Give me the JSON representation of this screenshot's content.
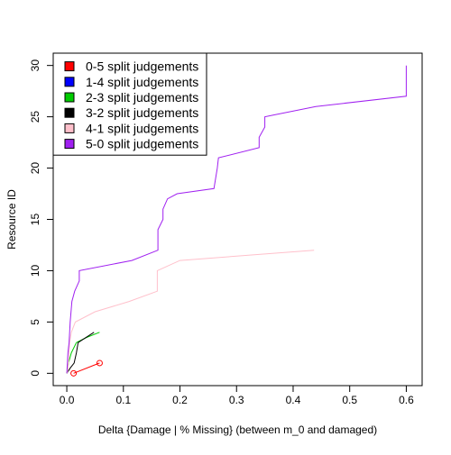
{
  "chart_data": {
    "type": "line",
    "xlabel": "Delta {Damage | % Missing} (between m_0 and damaged)",
    "ylabel": "Resource ID",
    "xlim": [
      -0.024,
      0.628
    ],
    "ylim": [
      -1.2,
      31.2
    ],
    "x_ticks": [
      0.0,
      0.1,
      0.2,
      0.3,
      0.4,
      0.5,
      0.6
    ],
    "x_tick_labels": [
      "0.0",
      "0.1",
      "0.2",
      "0.3",
      "0.4",
      "0.5",
      "0.6"
    ],
    "y_ticks": [
      0,
      5,
      10,
      15,
      20,
      25,
      30
    ],
    "y_tick_labels": [
      "0",
      "5",
      "10",
      "15",
      "20",
      "25",
      "30"
    ],
    "grid": false,
    "legend_position": "top-left",
    "series": [
      {
        "name": "0-5 split judgements",
        "color": "#ff0000",
        "x": [
          0.012,
          0.058
        ],
        "y": [
          0,
          1
        ],
        "markers": true
      },
      {
        "name": "1-4 split judgements",
        "color": "#0000ff",
        "x": [],
        "y": []
      },
      {
        "name": "2-3 split judgements",
        "color": "#00cc00",
        "x": [
          0.0,
          0.003,
          0.008,
          0.017,
          0.035,
          0.058
        ],
        "y": [
          0,
          1,
          2,
          3,
          3.5,
          4
        ]
      },
      {
        "name": "3-2 split judgements",
        "color": "#000000",
        "x": [
          0.0,
          0.006,
          0.013,
          0.017,
          0.02,
          0.048
        ],
        "y": [
          0,
          0.5,
          1,
          2,
          3,
          4
        ]
      },
      {
        "name": "4-1 split judgements",
        "color": "#ffc0cb",
        "x": [
          0.001,
          0.003,
          0.005,
          0.008,
          0.015,
          0.05,
          0.11,
          0.16,
          0.16,
          0.2,
          0.437
        ],
        "y": [
          0,
          1,
          3,
          4,
          5,
          6,
          7,
          8,
          10,
          11,
          12
        ]
      },
      {
        "name": "5-0 split judgements",
        "color": "#a020f0",
        "x": [
          0.0,
          0.001,
          0.002,
          0.004,
          0.006,
          0.009,
          0.014,
          0.022,
          0.022,
          0.115,
          0.161,
          0.161,
          0.17,
          0.17,
          0.178,
          0.195,
          0.26,
          0.266,
          0.268,
          0.34,
          0.34,
          0.35,
          0.35,
          0.44,
          0.6,
          0.6
        ],
        "y": [
          0,
          1,
          2,
          3,
          5,
          7,
          8,
          9,
          10,
          11,
          12,
          14,
          15,
          16,
          17,
          17.5,
          18,
          20,
          21,
          22,
          23,
          24,
          25,
          26,
          27,
          30
        ]
      }
    ]
  }
}
